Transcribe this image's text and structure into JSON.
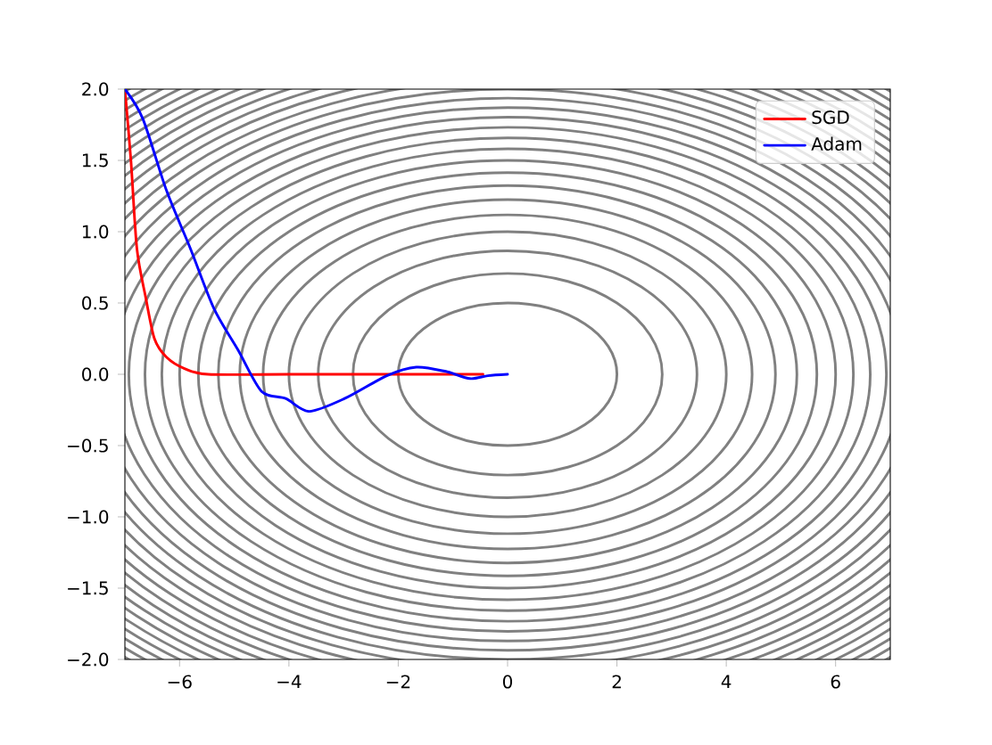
{
  "chart_data": {
    "type": "line",
    "xlim": [
      -7,
      7
    ],
    "ylim": [
      -2,
      2
    ],
    "xticks": [
      {
        "value": -6,
        "label": "−6"
      },
      {
        "value": -4,
        "label": "−4"
      },
      {
        "value": -2,
        "label": "−2"
      },
      0,
      2,
      4,
      6
    ],
    "yticks": [
      {
        "value": -2,
        "label": "−2.0"
      },
      {
        "value": -1.5,
        "label": "−1.5"
      },
      {
        "value": -1,
        "label": "−1.0"
      },
      {
        "value": -0.5,
        "label": "−0.5"
      },
      {
        "value": 0,
        "label": "0.0"
      },
      0.5,
      {
        "value": 1,
        "label": "1.0"
      },
      1.5,
      {
        "value": 2,
        "label": "2.0"
      }
    ],
    "legend": "top right",
    "series": [
      {
        "name": "SGD",
        "color": "#ff0000",
        "x": [
          -7,
          -6.89,
          -6.78,
          -6.62,
          -6.46,
          -6.24,
          -5.91,
          -5.48,
          -4,
          -2,
          -0.45
        ],
        "values": [
          2,
          1.5,
          0.88,
          0.54,
          0.25,
          0.12,
          0.04,
          0,
          0,
          0,
          0
        ]
      },
      {
        "name": "Adam",
        "color": "#0000ff",
        "x": [
          -7,
          -6.67,
          -6.24,
          -5.8,
          -5.37,
          -4.93,
          -4.5,
          -4.06,
          -3.63,
          -2.98,
          -2.21,
          -1.67,
          -1.13,
          -0.69,
          -0.36,
          0
        ],
        "values": [
          2,
          1.79,
          1.29,
          0.88,
          0.46,
          0.17,
          -0.12,
          -0.17,
          -0.26,
          -0.17,
          -0.01,
          0.05,
          0.02,
          -0.03,
          -0.01,
          0
        ]
      }
    ]
  }
}
